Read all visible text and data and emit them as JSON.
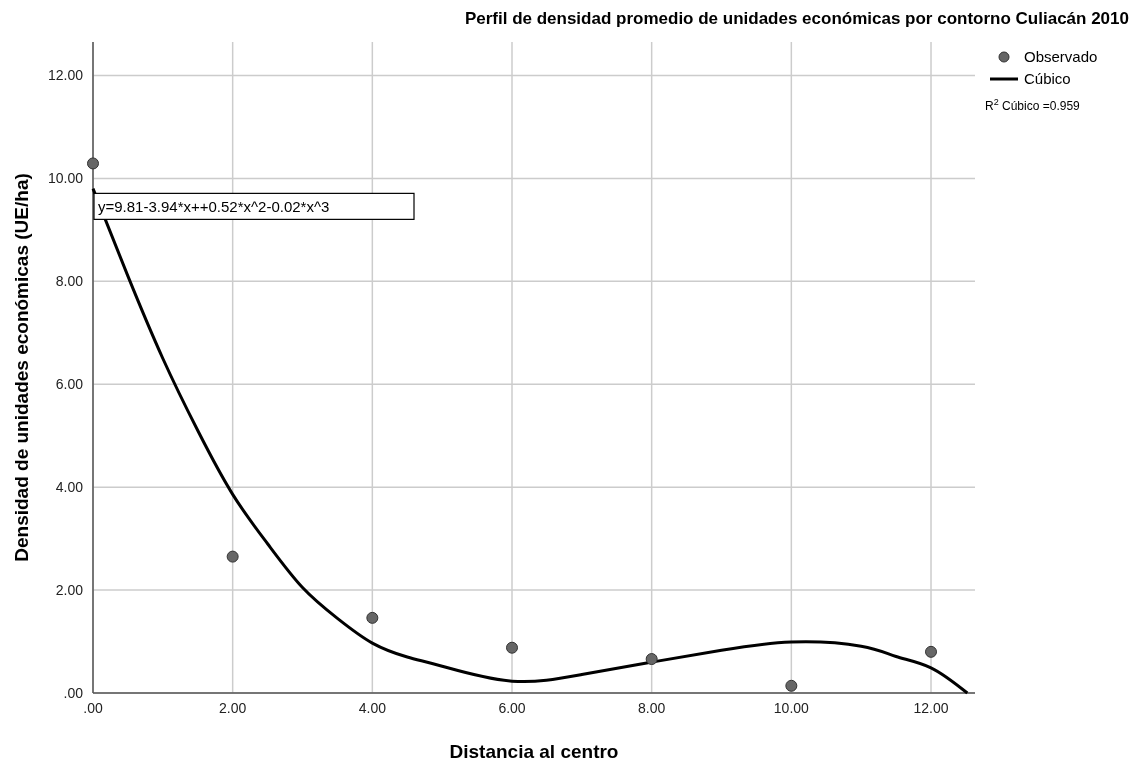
{
  "chart_data": {
    "type": "scatter",
    "title": "Perfil de densidad promedio de unidades económicas por contorno Culiacán 2010",
    "xlabel": "Distancia al centro",
    "ylabel": "Densidad de unidades económicas (UE/ha)",
    "xlim": [
      0,
      12.63
    ],
    "ylim": [
      0,
      12.65
    ],
    "xticks": [
      {
        "value": 0,
        "label": ".00"
      },
      {
        "value": 2,
        "label": "2.00"
      },
      {
        "value": 4,
        "label": "4.00"
      },
      {
        "value": 6,
        "label": "6.00"
      },
      {
        "value": 8,
        "label": "8.00"
      },
      {
        "value": 10,
        "label": "10.00"
      },
      {
        "value": 12,
        "label": "12.00"
      }
    ],
    "yticks": [
      {
        "value": 0,
        "label": ".00"
      },
      {
        "value": 2,
        "label": "2.00"
      },
      {
        "value": 4,
        "label": "4.00"
      },
      {
        "value": 6,
        "label": "6.00"
      },
      {
        "value": 8,
        "label": "8.00"
      },
      {
        "value": 10,
        "label": "10.00"
      },
      {
        "value": 12,
        "label": "12.00"
      }
    ],
    "grid": true,
    "legend": "top right",
    "series": [
      {
        "name": "Observado",
        "marker": "circle",
        "color": "#666666",
        "x": [
          0,
          2,
          4,
          6,
          8,
          10,
          12
        ],
        "values": [
          10.29,
          2.65,
          1.46,
          0.88,
          0.66,
          0.14,
          0.8
        ]
      },
      {
        "name": "Cúbico",
        "type": "line",
        "color": "#000000",
        "line_style": "solid",
        "x": [
          0,
          0.5,
          1,
          1.5,
          2,
          2.5,
          3,
          3.5,
          4,
          4.5,
          5,
          6,
          7,
          8,
          9,
          10,
          11,
          11.5,
          12,
          12.52
        ],
        "values": [
          9.8,
          8.1,
          6.5,
          5.1,
          3.86,
          2.9,
          2.05,
          1.45,
          0.97,
          0.7,
          0.52,
          0.23,
          0.36,
          0.6,
          0.83,
          0.99,
          0.91,
          0.71,
          0.49,
          0
        ]
      }
    ],
    "annotations": [
      "y=9.81-3.94*x++0.52*x^2-0.02*x^3",
      "R$^{2}$ Cúbico =0.959"
    ]
  }
}
